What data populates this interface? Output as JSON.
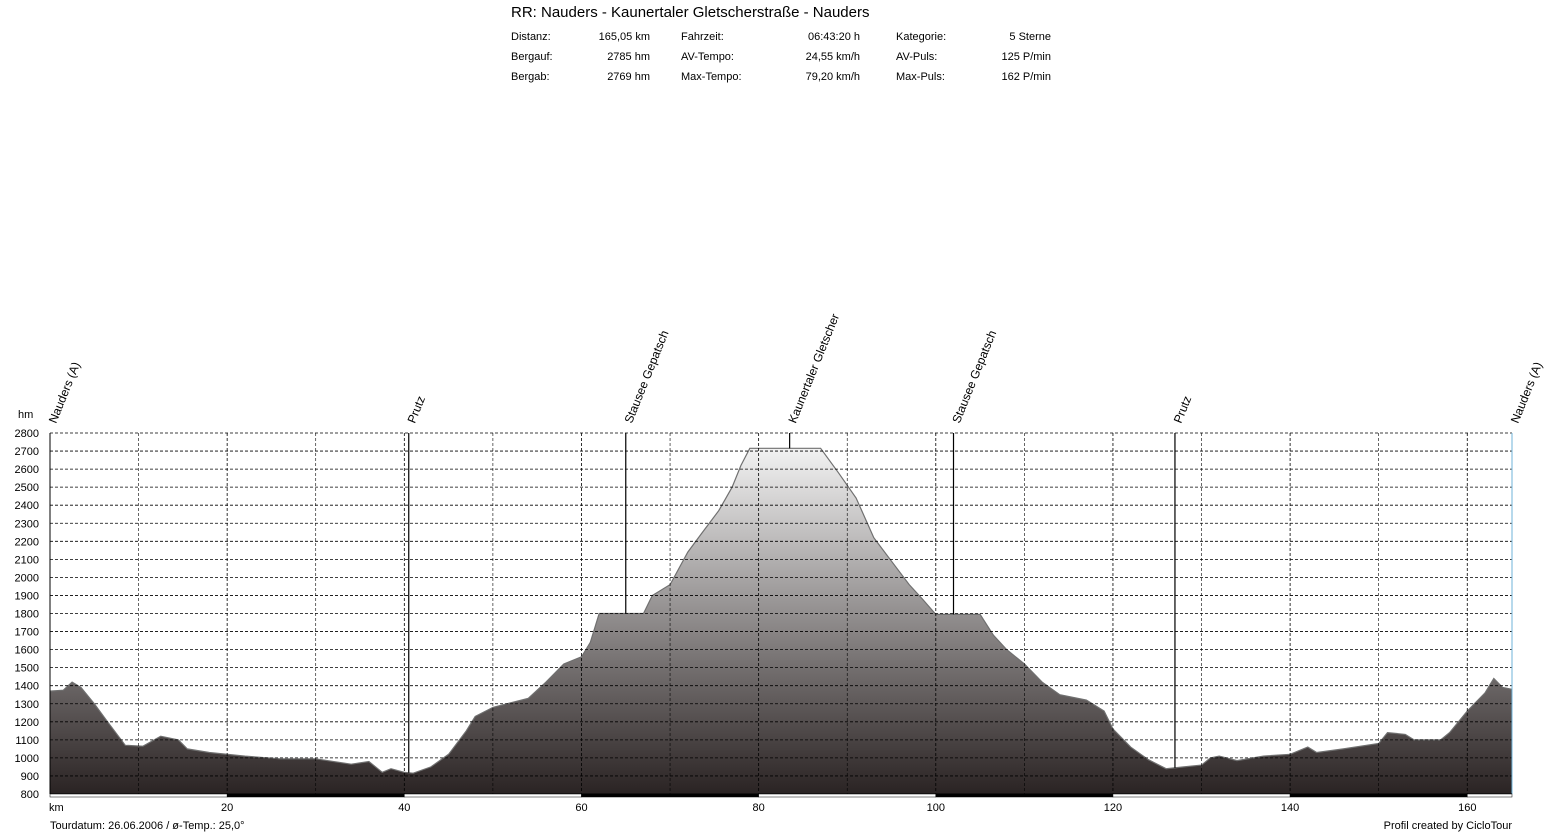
{
  "header": {
    "title": "RR: Nauders - Kaunertaler Gletscherstraße - Nauders",
    "stats": [
      {
        "label": "Distanz:",
        "value": "165,05 km"
      },
      {
        "label": "Bergauf:",
        "value": "2785 hm"
      },
      {
        "label": "Bergab:",
        "value": "2769 hm"
      },
      {
        "label": "Fahrzeit:",
        "value": "06:43:20 h"
      },
      {
        "label": "AV-Tempo:",
        "value": "24,55 km/h"
      },
      {
        "label": "Max-Tempo:",
        "value": "79,20 km/h"
      },
      {
        "label": "Kategorie:",
        "value": "5 Sterne"
      },
      {
        "label": "AV-Puls:",
        "value": "125 P/min"
      },
      {
        "label": "Max-Puls:",
        "value": "162 P/min"
      }
    ]
  },
  "footer": {
    "left": "Tourdatum: 26.06.2006  /  ø-Temp.: 25,0°",
    "right": "Profil created by CicloTour"
  },
  "chart_data": {
    "type": "area",
    "xlabel": "km",
    "ylabel": "hm",
    "xlim": [
      0,
      165.05
    ],
    "ylim": [
      800,
      2800
    ],
    "yticks": [
      800,
      900,
      1000,
      1100,
      1200,
      1300,
      1400,
      1500,
      1600,
      1700,
      1800,
      1900,
      2000,
      2100,
      2200,
      2300,
      2400,
      2500,
      2600,
      2700,
      2800
    ],
    "xticks": [
      20,
      40,
      60,
      80,
      100,
      120,
      140,
      160
    ],
    "grid": true,
    "colors": {
      "fill_top": "#f2f2f2",
      "fill_bottom": "#2a2323",
      "line": "#707070"
    },
    "waypoints": [
      {
        "name": "Nauders (A)",
        "km": 0
      },
      {
        "name": "Prutz",
        "km": 40.5
      },
      {
        "name": "Stausee Gepatsch",
        "km": 65
      },
      {
        "name": "Kaunertaler Gletscher",
        "km": 83.5
      },
      {
        "name": "Stausee Gepatsch",
        "km": 102
      },
      {
        "name": "Prutz",
        "km": 127
      },
      {
        "name": "Nauders (A)",
        "km": 165.05
      }
    ],
    "profile": [
      [
        0,
        1370
      ],
      [
        1.5,
        1375
      ],
      [
        2.5,
        1420
      ],
      [
        3.5,
        1390
      ],
      [
        5,
        1300
      ],
      [
        6.5,
        1200
      ],
      [
        8.5,
        1070
      ],
      [
        10.5,
        1065
      ],
      [
        12.5,
        1120
      ],
      [
        14.5,
        1100
      ],
      [
        15.5,
        1050
      ],
      [
        18,
        1030
      ],
      [
        22,
        1010
      ],
      [
        26,
        995
      ],
      [
        30,
        995
      ],
      [
        34,
        965
      ],
      [
        36,
        980
      ],
      [
        37.5,
        920
      ],
      [
        38.5,
        940
      ],
      [
        40,
        920
      ],
      [
        41,
        915
      ],
      [
        43,
        950
      ],
      [
        45,
        1020
      ],
      [
        47,
        1150
      ],
      [
        48,
        1230
      ],
      [
        50,
        1280
      ],
      [
        54,
        1330
      ],
      [
        56,
        1420
      ],
      [
        58,
        1520
      ],
      [
        60,
        1560
      ],
      [
        61,
        1640
      ],
      [
        62,
        1800
      ],
      [
        67,
        1800
      ],
      [
        68,
        1900
      ],
      [
        70,
        1960
      ],
      [
        72,
        2140
      ],
      [
        73.5,
        2240
      ],
      [
        75.5,
        2370
      ],
      [
        77,
        2500
      ],
      [
        78,
        2620
      ],
      [
        79,
        2715
      ],
      [
        87,
        2715
      ],
      [
        89,
        2580
      ],
      [
        91,
        2440
      ],
      [
        93,
        2220
      ],
      [
        95,
        2090
      ],
      [
        97,
        1960
      ],
      [
        98.5,
        1880
      ],
      [
        100,
        1795
      ],
      [
        105,
        1795
      ],
      [
        106.5,
        1680
      ],
      [
        108,
        1600
      ],
      [
        110,
        1520
      ],
      [
        112,
        1420
      ],
      [
        114,
        1350
      ],
      [
        117,
        1320
      ],
      [
        119,
        1260
      ],
      [
        120,
        1160
      ],
      [
        122,
        1060
      ],
      [
        124,
        990
      ],
      [
        126,
        940
      ],
      [
        128,
        950
      ],
      [
        130,
        960
      ],
      [
        131,
        1000
      ],
      [
        132,
        1010
      ],
      [
        134,
        985
      ],
      [
        137,
        1010
      ],
      [
        140,
        1020
      ],
      [
        142,
        1060
      ],
      [
        143,
        1030
      ],
      [
        146,
        1050
      ],
      [
        150,
        1080
      ],
      [
        151,
        1140
      ],
      [
        153,
        1130
      ],
      [
        154,
        1100
      ],
      [
        157,
        1100
      ],
      [
        158,
        1140
      ],
      [
        160,
        1260
      ],
      [
        162,
        1360
      ],
      [
        163,
        1440
      ],
      [
        164,
        1390
      ],
      [
        165.05,
        1380
      ]
    ]
  }
}
